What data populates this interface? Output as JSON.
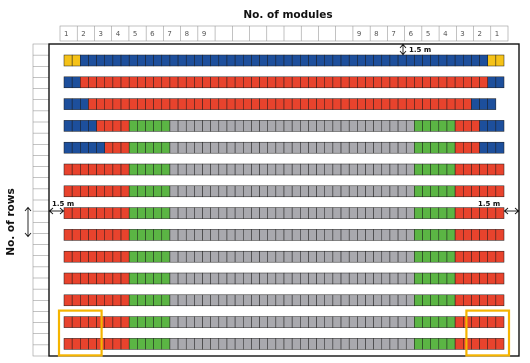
{
  "x_axis_label": "No. of modules",
  "y_axis_label": "No. of rows",
  "column_numbers_left": [
    "1",
    "2",
    "3",
    "4",
    "5",
    "6",
    "7",
    "8",
    "9"
  ],
  "column_numbers_right": [
    "9",
    "8",
    "7",
    "6",
    "5",
    "4",
    "3",
    "2",
    "1"
  ],
  "spacing_label_top": "1.5 m",
  "spacing_label_left": "1.5 m",
  "spacing_label_right": "1.5 m",
  "colors": {
    "Y": "#f5c218",
    "B": "#1d4f9c",
    "R": "#e8432d",
    "G": "#5bb544",
    "S": "#a9a9ae",
    "highlight": "#f5b400"
  },
  "rows": [
    "YYBBBBBBBBBBBBBBBBBBBBBBBBBBBBBBBBBBBBBBBBBBBBBBBBBBYY",
    "BBRRRRRRRRRRRRRRRRRRRRRRRRRRRRRRRRRRRRRRRRRRRRRRRRRRBB",
    "BBBRRRRRRRRRRRRRRRRRRRRRRRRRRRRRRRRRRRRRRRRRRRRRRRBBB",
    "BBBBRRRRGGGGGSSSSSSSSSSSSSSSSSSSSSSSSSSSSSSGGGGGRRRBBBB",
    "BBBBBRRRGGGGGSSSSSSSSSSSSSSSSSSSSSSSSSSSSSSGGGGGRRRBBBBB",
    "RRRRRRRRGGGGGSSSSSSSSSSSSSSSSSSSSSSSSSSSSSSGGGGGRRRRRRRR",
    "RRRRRRRRGGGGGSSSSSSSSSSSSSSSSSSSSSSSSSSSSSSGGGGGRRRRRRRR",
    "RRRRRRRRGGGGGSSSSSSSSSSSSSSSSSSSSSSSSSSSSSSGGGGGRRRRRRRR",
    "RRRRRRRRGGGGGSSSSSSSSSSSSSSSSSSSSSSSSSSSSSSGGGGGRRRRRRRR",
    "RRRRRRRRGGGGGSSSSSSSSSSSSSSSSSSSSSSSSSSSSSSGGGGGRRRRRRRR",
    "RRRRRRRRGGGGGSSSSSSSSSSSSSSSSSSSSSSSSSSSSSSGGGGGRRRRRRRR",
    "RRRRRRRRGGGGGSSSSSSSSSSSSSSSSSSSSSSSSSSSSSSGGGGGRRRRRRRR",
    "RRRRRRRRGGGGGSSSSSSSSSSSSSSSSSSSSSSSSSSSSSSGGGGGRRRRRRRR",
    "RRRRRRRRGGGGGSSSSSSSSSSSSSSSSSSSSSSSSSSSSSSGGGGGRRRRRRRR"
  ],
  "highlighted_rows": [
    12,
    13
  ]
}
